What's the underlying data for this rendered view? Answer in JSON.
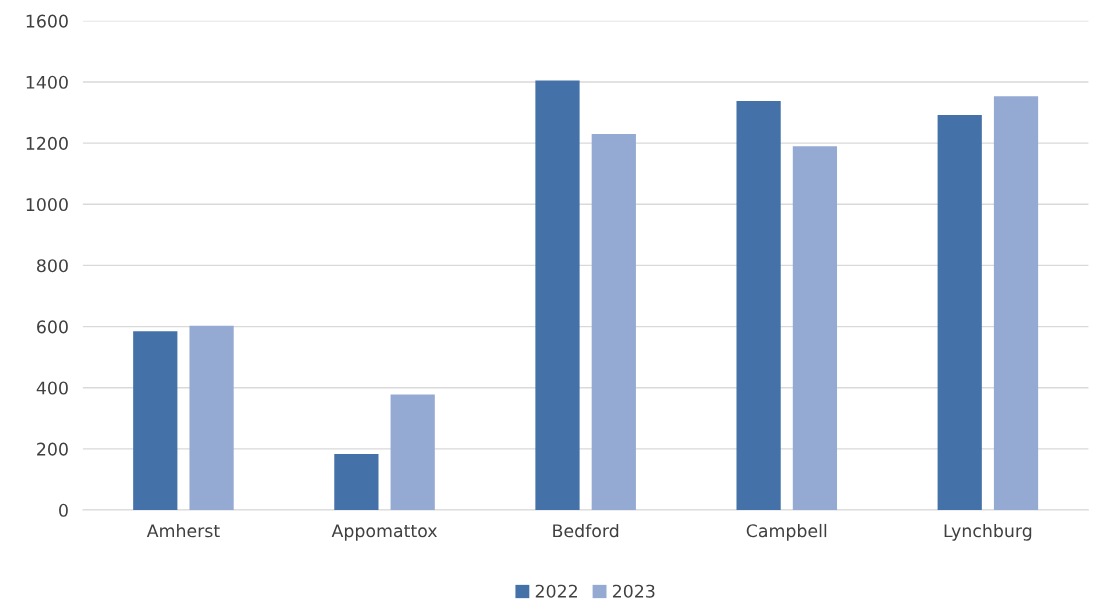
{
  "chart_data": {
    "type": "bar",
    "categories": [
      "Amherst",
      "Appomattox",
      "Bedford",
      "Campbell",
      "Lynchburg"
    ],
    "series": [
      {
        "name": "2022",
        "color": "#4472a8",
        "values": [
          585,
          183,
          1405,
          1338,
          1292
        ]
      },
      {
        "name": "2023",
        "color": "#95aad2",
        "values": [
          603,
          378,
          1230,
          1190,
          1353
        ]
      }
    ],
    "ylim": [
      0,
      1600
    ],
    "yticks": [
      0,
      200,
      400,
      600,
      800,
      1000,
      1200,
      1400,
      1600
    ],
    "grid": "y",
    "legend": "bottom"
  }
}
